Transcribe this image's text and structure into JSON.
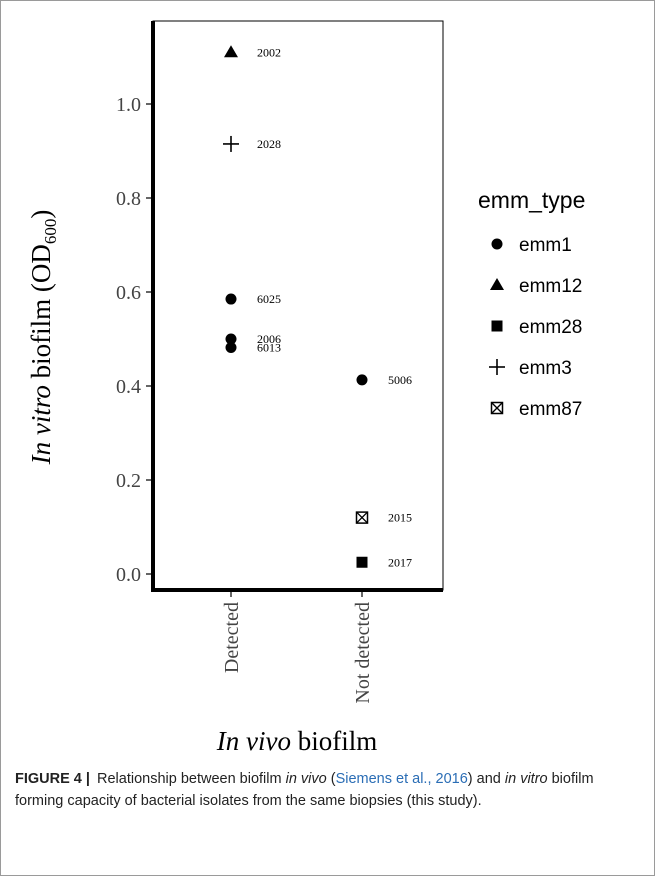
{
  "chart_data": {
    "type": "scatter",
    "xlabel": {
      "italic": "In vivo",
      "rest": "biofilm"
    },
    "ylabel": {
      "italic": "In vitro",
      "rest": "biofilm",
      "unit_open": "(OD",
      "unit_sub": "600",
      "unit_close": ")"
    },
    "categories": [
      "Detected",
      "Not detected"
    ],
    "ylim": [
      -0.03,
      1.15
    ],
    "yticks": [
      0.0,
      0.2,
      0.4,
      0.6,
      0.8,
      1.0
    ],
    "ytick_labels": [
      "0.0",
      "0.2",
      "0.4",
      "0.6",
      "0.8",
      "1.0"
    ],
    "points": [
      {
        "category": "Detected",
        "y": 1.11,
        "label": "2002",
        "emm_type": "emm12"
      },
      {
        "category": "Detected",
        "y": 0.915,
        "label": "2028",
        "emm_type": "emm3"
      },
      {
        "category": "Detected",
        "y": 0.585,
        "label": "6025",
        "emm_type": "emm1"
      },
      {
        "category": "Detected",
        "y": 0.5,
        "label": "2006",
        "emm_type": "emm1"
      },
      {
        "category": "Detected",
        "y": 0.482,
        "label": "6013",
        "emm_type": "emm1"
      },
      {
        "category": "Not detected",
        "y": 0.413,
        "label": "5006",
        "emm_type": "emm1"
      },
      {
        "category": "Not detected",
        "y": 0.12,
        "label": "2015",
        "emm_type": "emm87"
      },
      {
        "category": "Not detected",
        "y": 0.025,
        "label": "2017",
        "emm_type": "emm28"
      }
    ],
    "legend": {
      "title": "emm_type",
      "position": "right",
      "items": [
        {
          "label": "emm1",
          "shape": "circle"
        },
        {
          "label": "emm12",
          "shape": "triangle"
        },
        {
          "label": "emm28",
          "shape": "square"
        },
        {
          "label": "emm3",
          "shape": "plus"
        },
        {
          "label": "emm87",
          "shape": "crossed-square"
        }
      ]
    },
    "grid": false
  },
  "caption": {
    "figure_label": "FIGURE 4",
    "separator": "|",
    "part1": " Relationship between biofilm ",
    "italic1": "in vivo",
    "part2": " (",
    "citation": "Siemens et al., 2016",
    "part3": ") and ",
    "italic2": "in vitro",
    "part4": " biofilm forming capacity of bacterial isolates from the same biopsies (this study)."
  }
}
